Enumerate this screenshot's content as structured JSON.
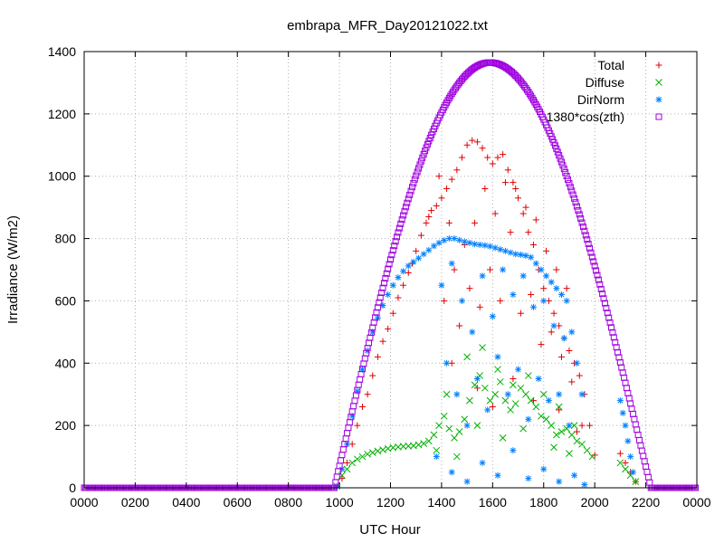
{
  "chart_data": {
    "type": "scatter",
    "title": "embrapa_MFR_Day20121022.txt",
    "xlabel": "UTC Hour",
    "ylabel": "Irradiance (W/m2)",
    "xlim": [
      0,
      24
    ],
    "ylim": [
      0,
      1400
    ],
    "grid": true,
    "legend_position": "top-right",
    "x_ticks": [
      {
        "value": 0,
        "label": "0000"
      },
      {
        "value": 2,
        "label": "0200"
      },
      {
        "value": 4,
        "label": "0400"
      },
      {
        "value": 6,
        "label": "0600"
      },
      {
        "value": 8,
        "label": "0800"
      },
      {
        "value": 10,
        "label": "1000"
      },
      {
        "value": 12,
        "label": "1200"
      },
      {
        "value": 14,
        "label": "1400"
      },
      {
        "value": 16,
        "label": "1600"
      },
      {
        "value": 18,
        "label": "1800"
      },
      {
        "value": 20,
        "label": "2000"
      },
      {
        "value": 22,
        "label": "2200"
      },
      {
        "value": 24,
        "label": "0000"
      }
    ],
    "y_ticks": [
      {
        "value": 0,
        "label": "0"
      },
      {
        "value": 200,
        "label": "200"
      },
      {
        "value": 400,
        "label": "400"
      },
      {
        "value": 600,
        "label": "600"
      },
      {
        "value": 800,
        "label": "800"
      },
      {
        "value": 1000,
        "label": "1000"
      },
      {
        "value": 1200,
        "label": "1200"
      },
      {
        "value": 1400,
        "label": "1400"
      }
    ],
    "series": [
      {
        "name": "Total",
        "marker": "plus",
        "color": "#e00000",
        "points": [
          [
            9.9,
            5
          ],
          [
            10.1,
            30
          ],
          [
            10.3,
            80
          ],
          [
            10.5,
            140
          ],
          [
            10.7,
            200
          ],
          [
            10.9,
            260
          ],
          [
            11.1,
            300
          ],
          [
            11.3,
            360
          ],
          [
            11.5,
            420
          ],
          [
            11.7,
            470
          ],
          [
            11.9,
            510
          ],
          [
            12.1,
            560
          ],
          [
            12.3,
            610
          ],
          [
            12.5,
            650
          ],
          [
            12.7,
            690
          ],
          [
            12.85,
            720
          ],
          [
            13.0,
            760
          ],
          [
            13.2,
            810
          ],
          [
            13.4,
            850
          ],
          [
            13.5,
            870
          ],
          [
            13.6,
            890
          ],
          [
            13.8,
            905
          ],
          [
            14.0,
            930
          ],
          [
            14.2,
            960
          ],
          [
            14.4,
            990
          ],
          [
            14.6,
            1020
          ],
          [
            14.8,
            1060
          ],
          [
            15.0,
            1100
          ],
          [
            15.2,
            1115
          ],
          [
            15.4,
            1110
          ],
          [
            15.6,
            1090
          ],
          [
            15.8,
            1060
          ],
          [
            16.0,
            1040
          ],
          [
            16.2,
            1060
          ],
          [
            16.4,
            1070
          ],
          [
            16.6,
            1020
          ],
          [
            16.8,
            980
          ],
          [
            17.0,
            930
          ],
          [
            17.2,
            880
          ],
          [
            17.4,
            820
          ],
          [
            17.6,
            780
          ],
          [
            17.8,
            700
          ],
          [
            18.0,
            640
          ],
          [
            18.2,
            600
          ],
          [
            18.4,
            560
          ],
          [
            18.6,
            520
          ],
          [
            18.8,
            480
          ],
          [
            19.0,
            440
          ],
          [
            19.2,
            400
          ],
          [
            19.4,
            360
          ],
          [
            19.6,
            300
          ],
          [
            19.8,
            200
          ],
          [
            20.0,
            105
          ],
          [
            13.9,
            1000
          ],
          [
            14.3,
            850
          ],
          [
            14.5,
            700
          ],
          [
            14.9,
            780
          ],
          [
            15.3,
            850
          ],
          [
            15.7,
            960
          ],
          [
            16.1,
            880
          ],
          [
            16.5,
            980
          ],
          [
            16.9,
            960
          ],
          [
            17.3,
            900
          ],
          [
            17.7,
            860
          ],
          [
            18.1,
            760
          ],
          [
            18.5,
            700
          ],
          [
            18.9,
            640
          ],
          [
            14.1,
            600
          ],
          [
            14.7,
            520
          ],
          [
            15.1,
            640
          ],
          [
            15.5,
            580
          ],
          [
            15.9,
            700
          ],
          [
            16.3,
            600
          ],
          [
            16.7,
            820
          ],
          [
            17.1,
            560
          ],
          [
            17.5,
            620
          ],
          [
            17.9,
            460
          ],
          [
            18.3,
            500
          ],
          [
            18.7,
            420
          ],
          [
            19.1,
            340
          ],
          [
            19.5,
            200
          ],
          [
            14.4,
            400
          ],
          [
            15.4,
            320
          ],
          [
            16.0,
            260
          ],
          [
            16.8,
            350
          ],
          [
            17.6,
            280
          ],
          [
            18.6,
            250
          ],
          [
            19.3,
            180
          ],
          [
            21.0,
            110
          ],
          [
            21.2,
            80
          ],
          [
            21.4,
            50
          ],
          [
            21.6,
            20
          ]
        ]
      },
      {
        "name": "Diffuse",
        "marker": "cross",
        "color": "#00b000",
        "points": [
          [
            9.9,
            5
          ],
          [
            10.1,
            40
          ],
          [
            10.3,
            60
          ],
          [
            10.5,
            80
          ],
          [
            10.7,
            92
          ],
          [
            10.9,
            100
          ],
          [
            11.1,
            108
          ],
          [
            11.3,
            113
          ],
          [
            11.5,
            118
          ],
          [
            11.7,
            122
          ],
          [
            11.9,
            126
          ],
          [
            12.1,
            129
          ],
          [
            12.3,
            131
          ],
          [
            12.5,
            133
          ],
          [
            12.7,
            134
          ],
          [
            12.9,
            135
          ],
          [
            13.1,
            138
          ],
          [
            13.3,
            142
          ],
          [
            13.5,
            150
          ],
          [
            13.7,
            170
          ],
          [
            13.9,
            200
          ],
          [
            14.1,
            230
          ],
          [
            14.3,
            190
          ],
          [
            14.5,
            160
          ],
          [
            14.7,
            180
          ],
          [
            14.9,
            220
          ],
          [
            15.1,
            280
          ],
          [
            15.3,
            330
          ],
          [
            15.5,
            360
          ],
          [
            15.7,
            320
          ],
          [
            15.9,
            280
          ],
          [
            16.1,
            300
          ],
          [
            16.3,
            340
          ],
          [
            16.5,
            280
          ],
          [
            16.7,
            250
          ],
          [
            16.9,
            270
          ],
          [
            17.1,
            320
          ],
          [
            17.3,
            300
          ],
          [
            17.5,
            280
          ],
          [
            17.7,
            260
          ],
          [
            17.9,
            230
          ],
          [
            18.1,
            220
          ],
          [
            18.3,
            200
          ],
          [
            18.5,
            170
          ],
          [
            18.7,
            180
          ],
          [
            18.9,
            190
          ],
          [
            19.1,
            170
          ],
          [
            19.3,
            150
          ],
          [
            19.5,
            140
          ],
          [
            19.7,
            120
          ],
          [
            19.9,
            100
          ],
          [
            14.2,
            300
          ],
          [
            15.0,
            420
          ],
          [
            15.6,
            450
          ],
          [
            16.2,
            380
          ],
          [
            16.8,
            330
          ],
          [
            17.4,
            360
          ],
          [
            18.0,
            300
          ],
          [
            18.6,
            260
          ],
          [
            19.2,
            200
          ],
          [
            13.8,
            120
          ],
          [
            14.6,
            100
          ],
          [
            15.4,
            200
          ],
          [
            16.4,
            160
          ],
          [
            17.2,
            190
          ],
          [
            18.4,
            130
          ],
          [
            19.0,
            110
          ],
          [
            21.0,
            80
          ],
          [
            21.2,
            60
          ],
          [
            21.4,
            40
          ],
          [
            21.6,
            20
          ]
        ]
      },
      {
        "name": "DirNorm",
        "marker": "star",
        "color": "#0080ff",
        "points": [
          [
            9.9,
            5
          ],
          [
            10.1,
            60
          ],
          [
            10.3,
            140
          ],
          [
            10.5,
            230
          ],
          [
            10.7,
            310
          ],
          [
            10.9,
            380
          ],
          [
            11.1,
            440
          ],
          [
            11.3,
            500
          ],
          [
            11.5,
            545
          ],
          [
            11.7,
            585
          ],
          [
            11.9,
            620
          ],
          [
            12.1,
            650
          ],
          [
            12.3,
            675
          ],
          [
            12.5,
            695
          ],
          [
            12.7,
            712
          ],
          [
            12.9,
            725
          ],
          [
            13.1,
            737
          ],
          [
            13.3,
            750
          ],
          [
            13.5,
            763
          ],
          [
            13.7,
            776
          ],
          [
            13.9,
            786
          ],
          [
            14.1,
            794
          ],
          [
            14.3,
            800
          ],
          [
            14.5,
            800
          ],
          [
            14.7,
            795
          ],
          [
            14.9,
            790
          ],
          [
            15.1,
            786
          ],
          [
            15.3,
            782
          ],
          [
            15.5,
            780
          ],
          [
            15.7,
            778
          ],
          [
            15.9,
            775
          ],
          [
            16.1,
            770
          ],
          [
            16.3,
            765
          ],
          [
            16.5,
            760
          ],
          [
            16.7,
            755
          ],
          [
            16.9,
            750
          ],
          [
            17.1,
            748
          ],
          [
            17.3,
            745
          ],
          [
            17.5,
            740
          ],
          [
            17.7,
            720
          ],
          [
            17.9,
            700
          ],
          [
            18.1,
            680
          ],
          [
            18.3,
            660
          ],
          [
            18.5,
            640
          ],
          [
            18.7,
            620
          ],
          [
            18.9,
            600
          ],
          [
            19.1,
            500
          ],
          [
            19.3,
            400
          ],
          [
            19.5,
            300
          ],
          [
            14.0,
            650
          ],
          [
            14.4,
            720
          ],
          [
            14.8,
            600
          ],
          [
            15.2,
            500
          ],
          [
            15.6,
            680
          ],
          [
            16.0,
            550
          ],
          [
            16.4,
            700
          ],
          [
            16.8,
            620
          ],
          [
            17.2,
            680
          ],
          [
            17.6,
            580
          ],
          [
            18.0,
            600
          ],
          [
            18.4,
            520
          ],
          [
            18.8,
            480
          ],
          [
            14.2,
            400
          ],
          [
            14.6,
            300
          ],
          [
            15.0,
            200
          ],
          [
            15.4,
            350
          ],
          [
            15.8,
            250
          ],
          [
            16.2,
            420
          ],
          [
            16.6,
            300
          ],
          [
            17.0,
            380
          ],
          [
            17.4,
            220
          ],
          [
            17.8,
            350
          ],
          [
            18.2,
            280
          ],
          [
            18.6,
            300
          ],
          [
            19.0,
            200
          ],
          [
            13.8,
            100
          ],
          [
            14.4,
            50
          ],
          [
            15.0,
            20
          ],
          [
            15.6,
            80
          ],
          [
            16.2,
            40
          ],
          [
            16.8,
            120
          ],
          [
            17.4,
            30
          ],
          [
            18.0,
            60
          ],
          [
            18.6,
            20
          ],
          [
            19.2,
            40
          ],
          [
            19.6,
            10
          ],
          [
            21.0,
            280
          ],
          [
            21.1,
            240
          ],
          [
            21.2,
            200
          ],
          [
            21.3,
            150
          ],
          [
            21.4,
            100
          ],
          [
            21.5,
            50
          ]
        ]
      },
      {
        "name": "1380*cos(zth)",
        "marker": "square",
        "color": "#a000e0",
        "curve": {
          "start": 9.8,
          "end": 22.2,
          "step": 0.05,
          "peak_x": 15.9,
          "peak_value": 1365,
          "zero_before": 9.8,
          "zero_after": 22.2
        }
      }
    ]
  }
}
